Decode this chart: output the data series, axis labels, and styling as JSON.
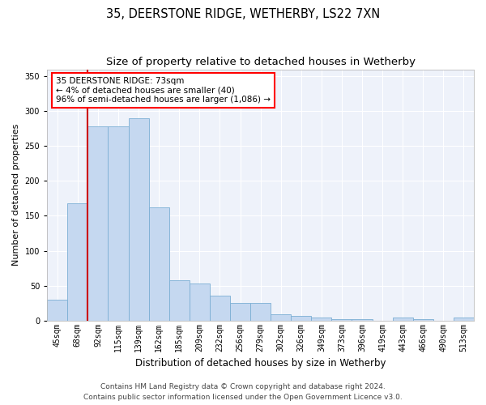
{
  "title1": "35, DEERSTONE RIDGE, WETHERBY, LS22 7XN",
  "title2": "Size of property relative to detached houses in Wetherby",
  "xlabel": "Distribution of detached houses by size in Wetherby",
  "ylabel": "Number of detached properties",
  "categories": [
    "45sqm",
    "68sqm",
    "92sqm",
    "115sqm",
    "139sqm",
    "162sqm",
    "185sqm",
    "209sqm",
    "232sqm",
    "256sqm",
    "279sqm",
    "302sqm",
    "326sqm",
    "349sqm",
    "373sqm",
    "396sqm",
    "419sqm",
    "443sqm",
    "466sqm",
    "490sqm",
    "513sqm"
  ],
  "values": [
    30,
    168,
    278,
    278,
    290,
    162,
    58,
    53,
    35,
    25,
    25,
    9,
    6,
    4,
    2,
    2,
    0,
    4,
    2,
    0,
    4
  ],
  "bar_color": "#c5d8f0",
  "bar_edge_color": "#7bafd4",
  "annotation_title": "35 DEERSTONE RIDGE: 73sqm",
  "annotation_line1": "← 4% of detached houses are smaller (40)",
  "annotation_line2": "96% of semi-detached houses are larger (1,086) →",
  "vline_color": "#cc0000",
  "vline_x": 1.5,
  "ylim": [
    0,
    360
  ],
  "yticks": [
    0,
    50,
    100,
    150,
    200,
    250,
    300,
    350
  ],
  "footer1": "Contains HM Land Registry data © Crown copyright and database right 2024.",
  "footer2": "Contains public sector information licensed under the Open Government Licence v3.0.",
  "plot_bg_color": "#eef2fa",
  "title1_fontsize": 10.5,
  "title2_fontsize": 9.5,
  "xlabel_fontsize": 8.5,
  "ylabel_fontsize": 8,
  "tick_fontsize": 7,
  "annot_fontsize": 7.5,
  "footer_fontsize": 6.5
}
